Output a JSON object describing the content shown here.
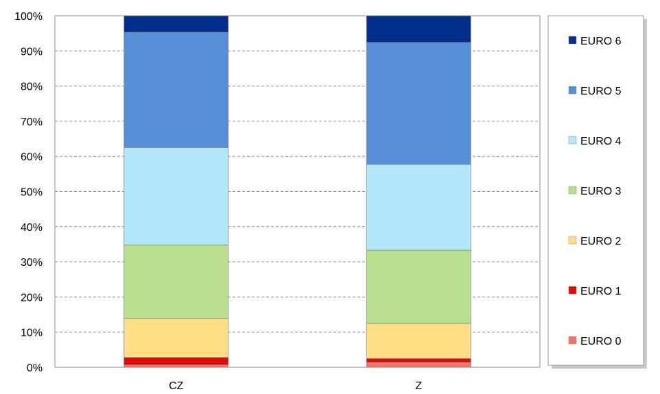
{
  "chart_data": {
    "type": "bar",
    "stacked": true,
    "percent": true,
    "categories": [
      "CZ",
      "Z"
    ],
    "y_ticks": [
      "0%",
      "10%",
      "20%",
      "30%",
      "40%",
      "50%",
      "60%",
      "70%",
      "80%",
      "90%",
      "100%"
    ],
    "ylim": [
      0,
      100
    ],
    "grid": true,
    "legend_position": "right",
    "series": [
      {
        "name": "EURO 0",
        "color": "#F07468",
        "values": [
          0.7,
          1.4
        ]
      },
      {
        "name": "EURO 1",
        "color": "#DD0C0C",
        "values": [
          2.1,
          1.1
        ]
      },
      {
        "name": "EURO 2",
        "color": "#FFDE85",
        "values": [
          11.1,
          10.0
        ]
      },
      {
        "name": "EURO 3",
        "color": "#B8DF8D",
        "values": [
          20.9,
          20.8
        ]
      },
      {
        "name": "EURO 4",
        "color": "#B3E8FA",
        "values": [
          27.7,
          24.4
        ]
      },
      {
        "name": "EURO 5",
        "color": "#568FD5",
        "values": [
          32.8,
          34.7
        ]
      },
      {
        "name": "EURO 6",
        "color": "#002E8A",
        "values": [
          4.7,
          7.6
        ]
      }
    ]
  }
}
